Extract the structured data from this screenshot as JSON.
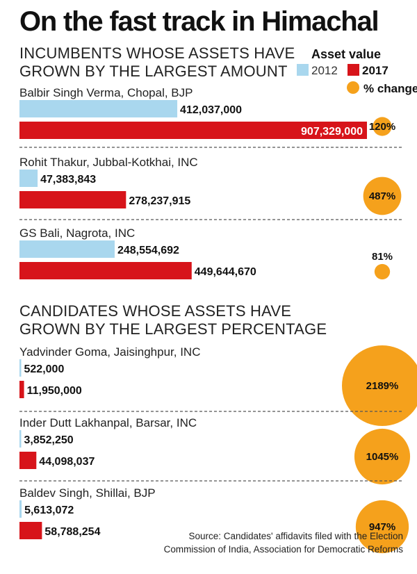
{
  "title": "On the fast track in Himachal",
  "legend": {
    "title": "Asset value",
    "items": [
      {
        "label": "2012",
        "color": "#a9d7ee"
      },
      {
        "label": "2017",
        "color": "#d7141a"
      },
      {
        "label": "% change",
        "color": "#f5a11c"
      }
    ]
  },
  "source": [
    "Source: Candidates' affidavits filed with the Election",
    "Commission of India, Association for Democratic Reforms"
  ],
  "chart_data": [
    {
      "type": "bar",
      "title": "INCUMBENTS WHOSE ASSETS HAVE GROWN BY THE LARGEST AMOUNT",
      "title_lines": [
        "INCUMBENTS WHOSE ASSETS HAVE",
        "GROWN BY THE LARGEST AMOUNT"
      ],
      "series_names": [
        "2012",
        "2017"
      ],
      "rows": [
        {
          "name": "Balbir Singh Verma, Chopal, BJP",
          "v2012": 412037000,
          "v2017": 907329000,
          "pct": 120,
          "v2012_label": "412,037,000",
          "v2017_label": "907,329,000",
          "pct_label": "120%"
        },
        {
          "name": "Rohit Thakur, Jubbal-Kotkhai, INC",
          "v2012": 47383843,
          "v2017": 278237915,
          "pct": 487,
          "v2012_label": "47,383,843",
          "v2017_label": "278,237,915",
          "pct_label": "487%"
        },
        {
          "name": "GS Bali, Nagrota, INC",
          "v2012": 248554692,
          "v2017": 449644670,
          "pct": 81,
          "v2012_label": "248,554,692",
          "v2017_label": "449,644,670",
          "pct_label": "81%"
        }
      ]
    },
    {
      "type": "bar",
      "title": "CANDIDATES WHOSE ASSETS HAVE GROWN BY THE LARGEST PERCENTAGE",
      "title_lines": [
        "CANDIDATES WHOSE ASSETS HAVE",
        "GROWN BY THE LARGEST PERCENTAGE"
      ],
      "series_names": [
        "2012",
        "2017"
      ],
      "rows": [
        {
          "name": "Yadvinder Goma, Jaisinghpur, INC",
          "v2012": 522000,
          "v2017": 11950000,
          "pct": 2189,
          "v2012_label": "522,000",
          "v2017_label": "11,950,000",
          "pct_label": "2189%"
        },
        {
          "name": "Inder Dutt Lakhanpal, Barsar, INC",
          "v2012": 3852250,
          "v2017": 44098037,
          "pct": 1045,
          "v2012_label": "3,852,250",
          "v2017_label": "44,098,037",
          "pct_label": "1045%"
        },
        {
          "name": "Baldev Singh, Shillai, BJP",
          "v2012": 5613072,
          "v2017": 58788254,
          "pct": 947,
          "v2012_label": "5,613,072",
          "v2017_label": "58,788,254",
          "pct_label": "947%"
        }
      ]
    }
  ]
}
